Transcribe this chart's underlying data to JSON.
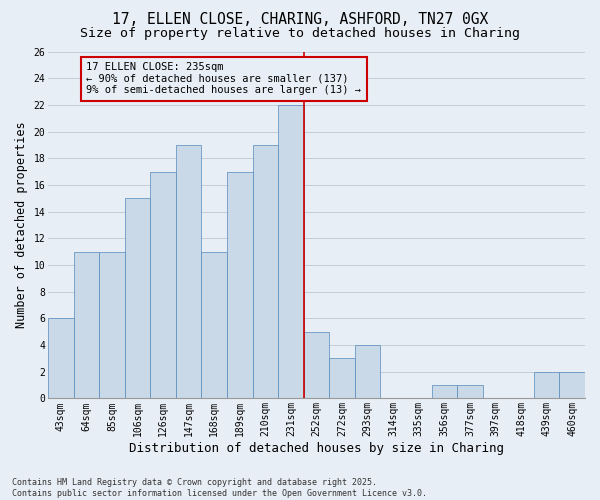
{
  "title1": "17, ELLEN CLOSE, CHARING, ASHFORD, TN27 0GX",
  "title2": "Size of property relative to detached houses in Charing",
  "xlabel": "Distribution of detached houses by size in Charing",
  "ylabel": "Number of detached properties",
  "categories": [
    "43sqm",
    "64sqm",
    "85sqm",
    "106sqm",
    "126sqm",
    "147sqm",
    "168sqm",
    "189sqm",
    "210sqm",
    "231sqm",
    "252sqm",
    "272sqm",
    "293sqm",
    "314sqm",
    "335sqm",
    "356sqm",
    "377sqm",
    "397sqm",
    "418sqm",
    "439sqm",
    "460sqm"
  ],
  "values": [
    6,
    11,
    11,
    15,
    17,
    19,
    11,
    17,
    19,
    22,
    5,
    3,
    4,
    0,
    0,
    1,
    1,
    0,
    0,
    2,
    2
  ],
  "bar_color": "#c9d9e8",
  "bar_edge_color": "#5588bb",
  "grid_color": "#c0ccd8",
  "bg_color": "#e8eef5",
  "vline_x_index": 9.5,
  "vline_color": "#cc0000",
  "annotation_text": "17 ELLEN CLOSE: 235sqm\n← 90% of detached houses are smaller (137)\n9% of semi-detached houses are larger (13) →",
  "annotation_box_color": "#cc0000",
  "ylim": [
    0,
    26
  ],
  "yticks": [
    0,
    2,
    4,
    6,
    8,
    10,
    12,
    14,
    16,
    18,
    20,
    22,
    24,
    26
  ],
  "footer_text": "Contains HM Land Registry data © Crown copyright and database right 2025.\nContains public sector information licensed under the Open Government Licence v3.0.",
  "title_fontsize": 10.5,
  "subtitle_fontsize": 9.5,
  "axis_label_fontsize": 8.5,
  "tick_fontsize": 7,
  "annot_fontsize": 7.5,
  "footer_fontsize": 6
}
